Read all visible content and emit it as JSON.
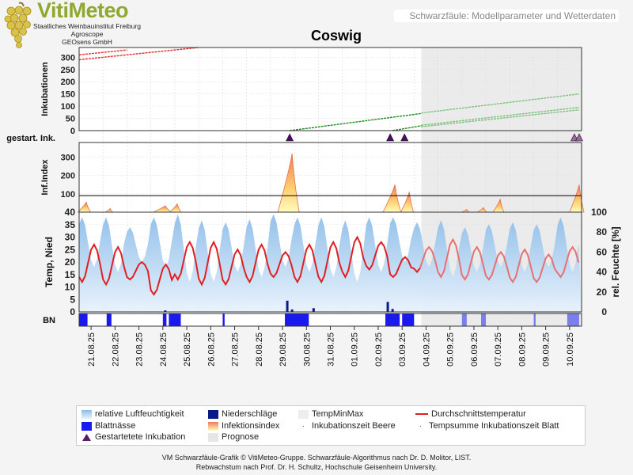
{
  "header": {
    "logo_title": "VitiMeteo",
    "logo_lines": [
      "Staatliches Weinbauinstitut Freiburg",
      "Agroscope",
      "GEOsens GmbH"
    ],
    "subtitle_box": "Schwarzfäule: Modellparameter und Wetterdaten",
    "title": "Coswig"
  },
  "colors": {
    "brand_green": "#8fa830",
    "humidity_blue": "#9fc7ec",
    "precip_navy": "#0a1a8a",
    "wetness_blue": "#1a1aee",
    "infection_index_top": "#f08b6a",
    "infection_index_bottom": "#ffef9a",
    "temp_red": "#e02020",
    "incubation_red": "#e03030",
    "incubation_green": "#208a20",
    "forecast_gray": "#e8e8e8"
  },
  "chart_data": {
    "type": "line",
    "x_dates": [
      "21.08.25",
      "22.08.25",
      "23.08.25",
      "24.08.25",
      "25.08.25",
      "26.08.25",
      "27.08.25",
      "28.08.25",
      "29.08.25",
      "30.08.25",
      "31.08.25",
      "01.09.25",
      "02.09.25",
      "03.09.25",
      "04.09.25",
      "05.09.25",
      "06.09.25",
      "07.09.25",
      "08.09.25",
      "09.09.25",
      "10.09.25"
    ],
    "forecast_start_day": 14.3,
    "panels": {
      "incubation": {
        "ylabel": "Inkubationen",
        "yticks": [
          0,
          50,
          100,
          150,
          200,
          250,
          300
        ],
        "ylim": [
          0,
          340
        ],
        "series": [
          {
            "name": "Inkubationszeit Beere",
            "color": "#e03030",
            "points": [
              [
                0,
                290
              ],
              [
                5,
                340
              ]
            ]
          },
          {
            "name": "Inkubationszeit Beere",
            "color": "#e03030",
            "points": [
              [
                0,
                310
              ],
              [
                2,
                330
              ]
            ]
          },
          {
            "name": "Tempsumme Inkubationszeit Blatt",
            "color": "#208a20",
            "points": [
              [
                8.8,
                0
              ],
              [
                14.3,
                70
              ]
            ]
          },
          {
            "name": "Tempsumme Inkubationszeit Blatt",
            "color": "#7fc07f",
            "points": [
              [
                14.3,
                72
              ],
              [
                20.9,
                150
              ]
            ]
          },
          {
            "name": "Tempsumme Inkubationszeit Blatt",
            "color": "#208a20",
            "points": [
              [
                13.1,
                0
              ],
              [
                14.3,
                20
              ]
            ]
          },
          {
            "name": "Tempsumme Inkubationszeit Blatt",
            "color": "#7fc07f",
            "points": [
              [
                14.3,
                22
              ],
              [
                20.9,
                95
              ]
            ]
          },
          {
            "name": "Tempsumme Inkubationszeit Blatt",
            "color": "#7fc07f",
            "points": [
              [
                14.3,
                16
              ],
              [
                20.9,
                85
              ]
            ]
          }
        ]
      },
      "started_incubations": {
        "label": "gestart. Ink.",
        "days": [
          8.8,
          13.0,
          13.6,
          20.7,
          20.9
        ],
        "forecast_flags": [
          false,
          false,
          false,
          true,
          true
        ]
      },
      "infection_index": {
        "ylabel": "Inf.Index",
        "yticks": [
          100,
          200,
          300
        ],
        "ylim": [
          0,
          380
        ],
        "threshold": 90,
        "peaks": [
          {
            "day": 0.3,
            "value": 55,
            "width": 0.35
          },
          {
            "day": 1.3,
            "value": 20,
            "width": 0.2
          },
          {
            "day": 3.6,
            "value": 35,
            "width": 0.5
          },
          {
            "day": 4.1,
            "value": 45,
            "width": 0.3
          },
          {
            "day": 8.9,
            "value": 320,
            "width": 0.6
          },
          {
            "day": 13.2,
            "value": 150,
            "width": 0.5
          },
          {
            "day": 13.8,
            "value": 110,
            "width": 0.35
          },
          {
            "day": 16.2,
            "value": 15,
            "width": 0.2
          },
          {
            "day": 16.9,
            "value": 25,
            "width": 0.25
          },
          {
            "day": 17.6,
            "value": 70,
            "width": 0.3
          },
          {
            "day": 20.9,
            "value": 150,
            "width": 0.4
          }
        ]
      },
      "weather": {
        "ylabel_left": "Temp, Nied",
        "ylabel_right": "rel. Feuchte [%]",
        "yticks_left": [
          0,
          5,
          10,
          15,
          20,
          25,
          30,
          35,
          40
        ],
        "yticks_right": [
          0,
          20,
          40,
          60,
          80,
          100
        ],
        "ylim_left": [
          0,
          40
        ],
        "ylim_right": [
          0,
          100
        ],
        "temp_daily": [
          {
            "min": 12,
            "max": 27
          },
          {
            "min": 11,
            "max": 26
          },
          {
            "min": 13,
            "max": 20
          },
          {
            "min": 7,
            "max": 19
          },
          {
            "min": 13,
            "max": 28
          },
          {
            "min": 11,
            "max": 28
          },
          {
            "min": 11,
            "max": 25
          },
          {
            "min": 12,
            "max": 27
          },
          {
            "min": 14,
            "max": 24
          },
          {
            "min": 12,
            "max": 27
          },
          {
            "min": 12,
            "max": 28
          },
          {
            "min": 14,
            "max": 30
          },
          {
            "min": 17,
            "max": 28
          },
          {
            "min": 14,
            "max": 22
          },
          {
            "min": 16,
            "max": 26
          },
          {
            "min": 14,
            "max": 29
          },
          {
            "min": 13,
            "max": 26
          },
          {
            "min": 13,
            "max": 24
          },
          {
            "min": 12,
            "max": 25
          },
          {
            "min": 12,
            "max": 23
          },
          {
            "min": 14,
            "max": 26
          }
        ],
        "humidity_daily": [
          {
            "min": 45,
            "max": 95
          },
          {
            "min": 40,
            "max": 95
          },
          {
            "min": 50,
            "max": 85
          },
          {
            "min": 45,
            "max": 95
          },
          {
            "min": 30,
            "max": 98
          },
          {
            "min": 30,
            "max": 92
          },
          {
            "min": 40,
            "max": 90
          },
          {
            "min": 35,
            "max": 93
          },
          {
            "min": 45,
            "max": 98
          },
          {
            "min": 40,
            "max": 95
          },
          {
            "min": 35,
            "max": 95
          },
          {
            "min": 30,
            "max": 92
          },
          {
            "min": 40,
            "max": 95
          },
          {
            "min": 50,
            "max": 95
          },
          {
            "min": 45,
            "max": 90
          },
          {
            "min": 35,
            "max": 92
          },
          {
            "min": 40,
            "max": 85
          },
          {
            "min": 45,
            "max": 88
          },
          {
            "min": 40,
            "max": 90
          },
          {
            "min": 45,
            "max": 88
          },
          {
            "min": 40,
            "max": 95
          }
        ],
        "precipitation": [
          {
            "day": 3.6,
            "value": 0.6
          },
          {
            "day": 8.7,
            "value": 4.5
          },
          {
            "day": 8.9,
            "value": 1.0
          },
          {
            "day": 9.8,
            "value": 1.5
          },
          {
            "day": 12.9,
            "value": 4.0
          },
          {
            "day": 13.1,
            "value": 1.2
          }
        ]
      },
      "leaf_wetness": {
        "label": "BN",
        "blocks": [
          [
            0.0,
            0.35
          ],
          [
            1.15,
            1.35
          ],
          [
            3.5,
            3.65
          ],
          [
            3.75,
            4.25
          ],
          [
            6.0,
            6.08
          ],
          [
            8.6,
            9.6
          ],
          [
            12.8,
            13.4
          ],
          [
            13.5,
            14.0
          ]
        ],
        "forecast_blocks": [
          [
            16.0,
            16.2
          ],
          [
            16.8,
            17.0
          ],
          [
            19.0,
            19.08
          ],
          [
            20.4,
            20.9
          ]
        ]
      }
    }
  },
  "legend": [
    {
      "label": "relative Luftfeuchtigkeit",
      "kind": "humidity"
    },
    {
      "label": "Niederschläge",
      "kind": "precip"
    },
    {
      "label": "TempMinMax",
      "kind": "tempminmax"
    },
    {
      "label": "Durchschnittstemperatur",
      "kind": "avgtemp"
    },
    {
      "label": "Blattnässe",
      "kind": "wetness"
    },
    {
      "label": "Infektionsindex",
      "kind": "infindex"
    },
    {
      "label": "Inkubationszeit Beere",
      "kind": "incberry"
    },
    {
      "label": "Tempsumme Inkubationszeit Blatt",
      "kind": "incleaf"
    },
    {
      "label": "Gestartetete Inkubation",
      "kind": "started"
    },
    {
      "label": "Prognose",
      "kind": "forecast"
    }
  ],
  "footer": {
    "line1": "VM Schwarzfäule-Grafik © VitiMeteo-Gruppe. Schwarzfäule-Algorithmus nach Dr. D. Molitor, LIST.",
    "line2": "Rebwachstum nach Prof. Dr. H. Schultz, Hochschule Geisenheim University."
  }
}
